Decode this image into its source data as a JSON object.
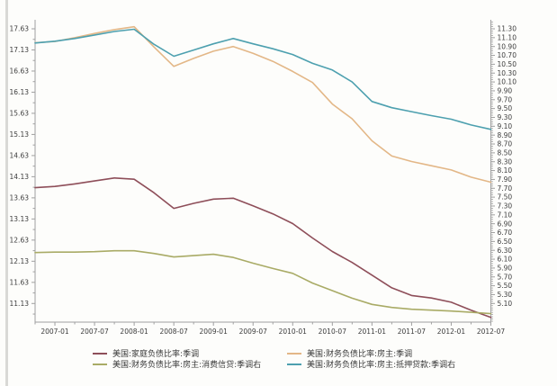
{
  "chart_data": {
    "type": "line",
    "title": "",
    "x_tick_labels": [
      "2007-01",
      "2007-07",
      "2008-01",
      "2008-07",
      "2009-01",
      "2009-07",
      "2010-01",
      "2010-07",
      "2011-01",
      "2011-07",
      "2012-01",
      "2012-07"
    ],
    "x_quarterly": [
      "2006-10",
      "2007-01",
      "2007-04",
      "2007-07",
      "2007-10",
      "2008-01",
      "2008-04",
      "2008-07",
      "2008-10",
      "2009-01",
      "2009-04",
      "2009-07",
      "2009-10",
      "2010-01",
      "2010-04",
      "2010-07",
      "2010-10",
      "2011-01",
      "2011-04",
      "2011-07",
      "2011-10",
      "2012-01",
      "2012-04",
      "2012-07"
    ],
    "left_axis": {
      "max": 17.63,
      "min": 11.13,
      "step": 0.5,
      "tick_labels": [
        "17.63",
        "17.13",
        "16.63",
        "16.13",
        "15.63",
        "15.13",
        "14.63",
        "14.13",
        "13.63",
        "13.13",
        "12.63",
        "12.13",
        "11.63",
        "11.13"
      ]
    },
    "right_axis": {
      "max": 11.3,
      "min": 5.1,
      "step": 0.2,
      "tick_labels": [
        "11.30",
        "11.10",
        "10.90",
        "10.70",
        "10.50",
        "10.30",
        "10.10",
        "9.90",
        "9.70",
        "9.50",
        "9.30",
        "9.10",
        "8.90",
        "8.70",
        "8.50",
        "8.30",
        "8.10",
        "7.90",
        "7.70",
        "7.50",
        "7.30",
        "7.10",
        "6.90",
        "6.70",
        "6.50",
        "6.30",
        "6.10",
        "5.90",
        "5.70",
        "5.50",
        "5.30",
        "5.10"
      ]
    },
    "grid": false,
    "legend_position": "bottom",
    "series": [
      {
        "name": "美国:家庭负债比率:季调",
        "axis": "left",
        "color": "#8e4e59",
        "values": [
          13.87,
          13.9,
          13.96,
          14.03,
          14.1,
          14.07,
          13.75,
          13.38,
          13.5,
          13.6,
          13.62,
          13.44,
          13.25,
          13.02,
          12.68,
          12.36,
          12.1,
          11.8,
          11.5,
          11.32,
          11.26,
          11.16,
          10.97,
          10.8
        ]
      },
      {
        "name": "美国:财务负债比率:房主:季调",
        "axis": "left",
        "color": "#e3b787",
        "values": [
          17.3,
          17.33,
          17.42,
          17.52,
          17.61,
          17.68,
          17.2,
          16.74,
          16.93,
          17.1,
          17.21,
          17.05,
          16.86,
          16.62,
          16.36,
          15.85,
          15.5,
          14.98,
          14.62,
          14.49,
          14.39,
          14.29,
          14.12,
          14.0
        ]
      },
      {
        "name": "美国:财务负债比率:房主:消费信贷:季调右",
        "axis": "right",
        "color": "#a9ab66",
        "values": [
          6.25,
          6.26,
          6.26,
          6.27,
          6.29,
          6.29,
          6.23,
          6.15,
          6.18,
          6.21,
          6.14,
          6.01,
          5.89,
          5.78,
          5.56,
          5.39,
          5.22,
          5.08,
          5.01,
          4.97,
          4.95,
          4.93,
          4.9,
          4.87
        ]
      },
      {
        "name": "美国:财务负债比率:房主:抵押贷款:季调右",
        "axis": "right",
        "color": "#4da0af",
        "values": [
          10.98,
          11.02,
          11.08,
          11.16,
          11.24,
          11.29,
          10.95,
          10.68,
          10.82,
          10.96,
          11.08,
          10.96,
          10.85,
          10.72,
          10.52,
          10.37,
          10.1,
          9.66,
          9.52,
          9.43,
          9.34,
          9.26,
          9.13,
          9.03
        ]
      }
    ],
    "colors": {
      "axis": "#a0a0a0",
      "tick_text": "#3c3c3c"
    }
  }
}
